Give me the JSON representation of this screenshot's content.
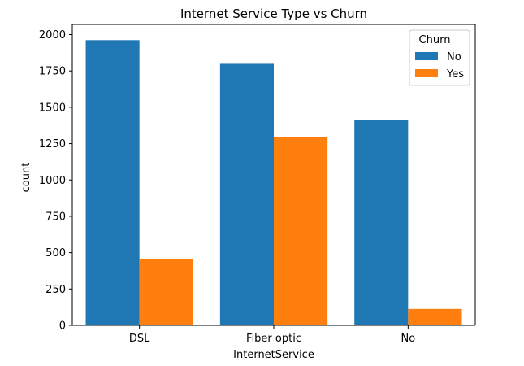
{
  "chart_data": {
    "type": "bar",
    "title": "Internet Service Type vs Churn",
    "xlabel": "InternetService",
    "ylabel": "count",
    "categories": [
      "DSL",
      "Fiber optic",
      "No"
    ],
    "series": [
      {
        "name": "No",
        "values": [
          1962,
          1799,
          1413
        ],
        "color": "#1f77b4"
      },
      {
        "name": "Yes",
        "values": [
          459,
          1297,
          113
        ],
        "color": "#ff7f0e"
      }
    ],
    "ylim": [
      0,
      2070
    ],
    "yticks": [
      0,
      250,
      500,
      750,
      1000,
      1250,
      1500,
      1750,
      2000
    ],
    "ytick_labels": [
      "0",
      "250",
      "500",
      "750",
      "1000",
      "1250",
      "1500",
      "1750",
      "2000"
    ],
    "grid": false,
    "legend": {
      "title": "Churn",
      "placement": "top-right"
    }
  }
}
